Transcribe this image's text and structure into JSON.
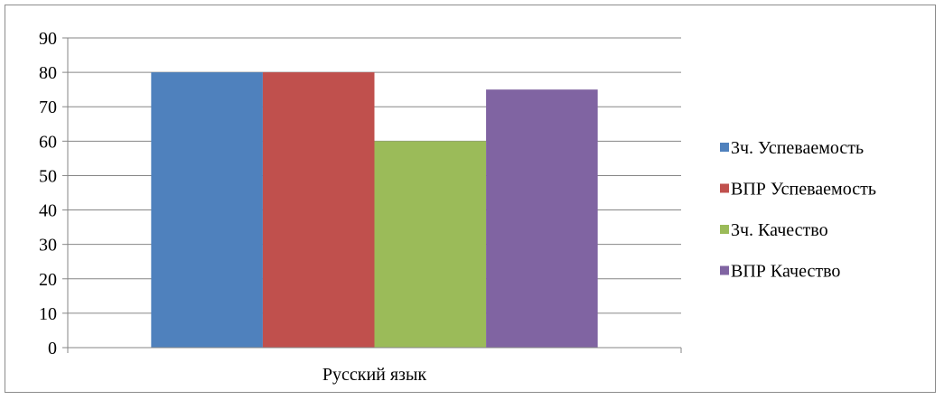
{
  "chart_data": {
    "type": "bar",
    "categories": [
      "Русский язык"
    ],
    "series": [
      {
        "name": "3ч. Успеваемость",
        "values": [
          80
        ],
        "color": "#4f81bd"
      },
      {
        "name": "ВПР Успеваемость",
        "values": [
          80
        ],
        "color": "#c0504d"
      },
      {
        "name": "3ч. Качество",
        "values": [
          60
        ],
        "color": "#9bbb59"
      },
      {
        "name": "ВПР Качество",
        "values": [
          75
        ],
        "color": "#8064a2"
      }
    ],
    "ylim": [
      0,
      90
    ],
    "yticks": [
      0,
      10,
      20,
      30,
      40,
      50,
      60,
      70,
      80,
      90
    ],
    "grid": true,
    "legend": "right",
    "title": "",
    "xlabel": "",
    "ylabel": ""
  }
}
